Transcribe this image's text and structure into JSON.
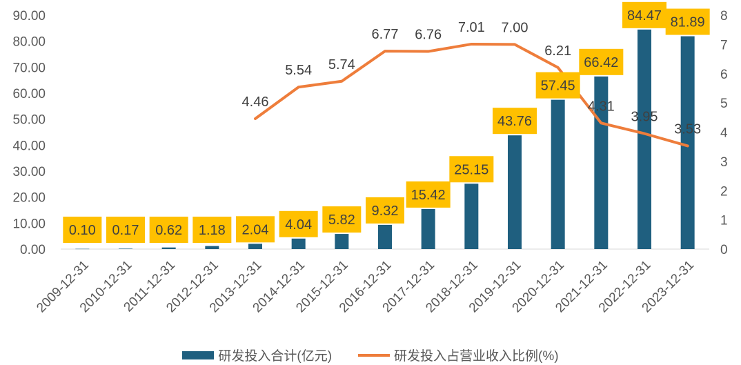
{
  "chart_data": {
    "type": "bar",
    "categories": [
      "2009-12-31",
      "2010-12-31",
      "2011-12-31",
      "2012-12-31",
      "2013-12-31",
      "2014-12-31",
      "2015-12-31",
      "2016-12-31",
      "2017-12-31",
      "2018-12-31",
      "2019-12-31",
      "2020-12-31",
      "2021-12-31",
      "2022-12-31",
      "2023-12-31"
    ],
    "series": [
      {
        "name": "研发投入合计(亿元)",
        "type": "bar",
        "axis": "left",
        "color": "#1f5f7f",
        "values": [
          0.1,
          0.17,
          0.62,
          1.18,
          2.04,
          4.04,
          5.82,
          9.32,
          15.42,
          25.15,
          43.76,
          57.45,
          66.42,
          84.47,
          81.89
        ],
        "labels": [
          "0.10",
          "0.17",
          "0.62",
          "1.18",
          "2.04",
          "4.04",
          "5.82",
          "9.32",
          "15.42",
          "25.15",
          "43.76",
          "57.45",
          "66.42",
          "84.47",
          "81.89"
        ]
      },
      {
        "name": "研发投入占营业收入比例(%)",
        "type": "line",
        "axis": "right",
        "color": "#ee7d3b",
        "values": [
          null,
          null,
          null,
          null,
          4.46,
          5.54,
          5.74,
          6.77,
          6.76,
          7.01,
          7.0,
          6.21,
          4.31,
          3.95,
          3.53
        ],
        "labels": [
          "",
          "",
          "",
          "",
          "4.46",
          "5.54",
          "5.74",
          "6.77",
          "6.76",
          "7.01",
          "7.00",
          "6.21",
          "4.31",
          "3.95",
          "3.53"
        ]
      }
    ],
    "y_left": {
      "min": 0,
      "max": 90,
      "ticks": [
        "0.00",
        "10.00",
        "20.00",
        "30.00",
        "40.00",
        "50.00",
        "60.00",
        "70.00",
        "80.00",
        "90.00"
      ]
    },
    "y_right": {
      "min": 0,
      "max": 8,
      "ticks": [
        "0",
        "1",
        "2",
        "3",
        "4",
        "5",
        "6",
        "7",
        "8"
      ]
    },
    "label_box_color": "#ffc000",
    "grid": false,
    "legend_position": "bottom"
  },
  "legend": {
    "bar_label": "研发投入合计(亿元)",
    "line_label": "研发投入占营业收入比例(%)"
  }
}
